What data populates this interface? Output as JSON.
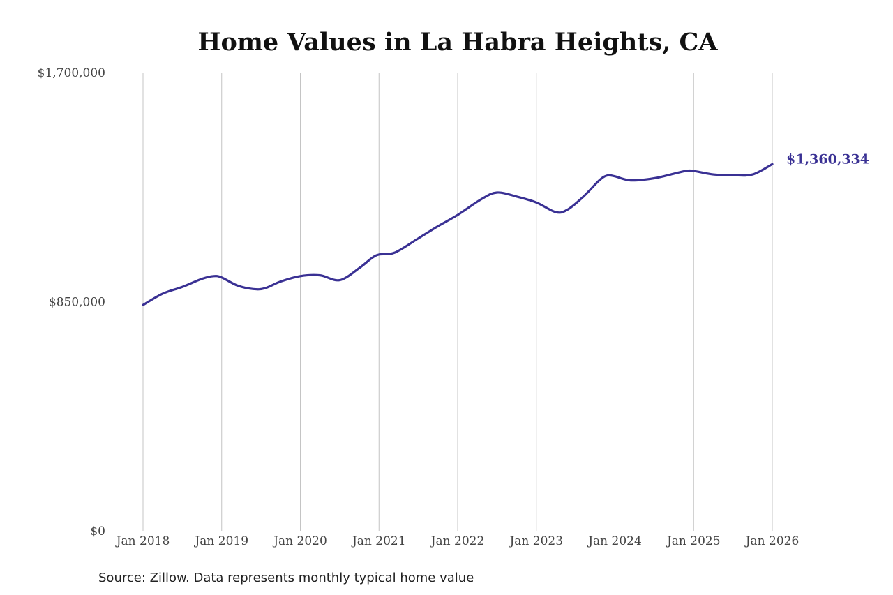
{
  "chart_data": {
    "type": "line",
    "title": "Home Values in La Habra Heights, CA",
    "xlabel": "",
    "ylabel": "",
    "source": "Source: Zillow. Data represents monthly typical home value",
    "y_ticks": [
      "$0",
      "$850,000",
      "$1,700,000"
    ],
    "ylim": [
      0,
      1700000
    ],
    "x_ticks": [
      "Jan 2018",
      "Jan 2019",
      "Jan 2020",
      "Jan 2021",
      "Jan 2022",
      "Jan 2023",
      "Jan 2024",
      "Jan 2025",
      "Jan 2026"
    ],
    "x_range": [
      2018.0,
      2026.0
    ],
    "grid": "vertical",
    "line_color": "#3a3194",
    "end_label": "$1,360,334",
    "series": [
      {
        "x": [
          2018.0,
          2018.25,
          2018.5,
          2018.75,
          2018.9,
          2019.0,
          2019.2,
          2019.4,
          2019.55,
          2019.75,
          2020.0,
          2020.25,
          2020.5,
          2020.75,
          2020.9,
          2021.0,
          2021.2,
          2021.5,
          2021.75,
          2022.0,
          2022.3,
          2022.5,
          2022.75,
          2023.0,
          2023.25,
          2023.4,
          2023.6,
          2023.8,
          2023.9,
          2024.0,
          2024.2,
          2024.5,
          2024.75,
          2024.9,
          2025.0,
          2025.25,
          2025.5,
          2025.75,
          2026.0
        ],
        "values": [
          838000,
          880000,
          905000,
          935000,
          945000,
          940000,
          910000,
          897000,
          900000,
          925000,
          945000,
          948000,
          930000,
          975000,
          1010000,
          1025000,
          1032000,
          1085000,
          1130000,
          1172000,
          1230000,
          1255000,
          1240000,
          1218000,
          1182000,
          1192000,
          1240000,
          1300000,
          1318000,
          1315000,
          1300000,
          1308000,
          1325000,
          1335000,
          1335000,
          1322000,
          1319000,
          1322000,
          1360334
        ]
      }
    ]
  }
}
